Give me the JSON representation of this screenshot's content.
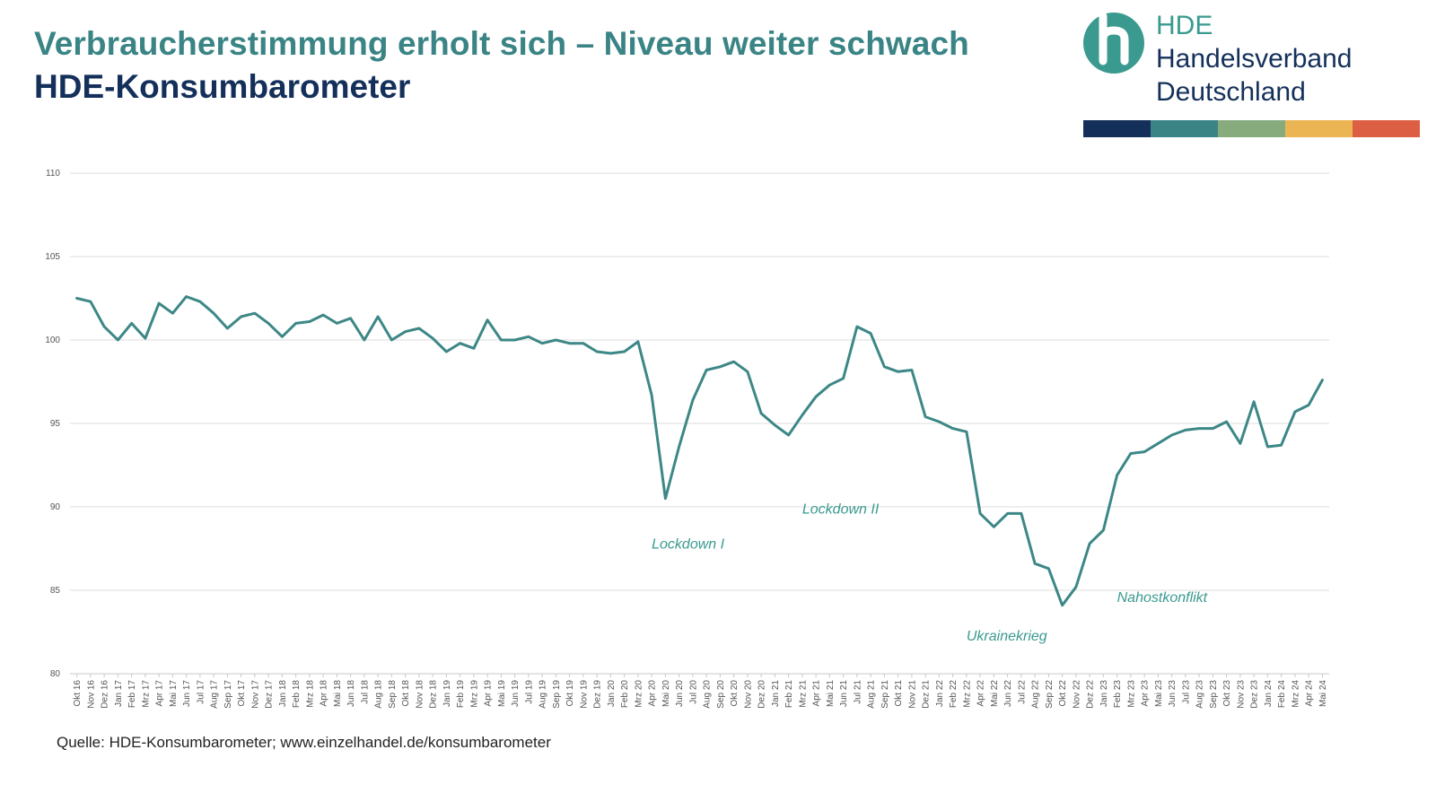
{
  "title": "Verbraucherstimmung erholt sich – Niveau weiter schwach",
  "subtitle": "HDE-Konsumbarometer",
  "logo": {
    "abbr": "HDE",
    "line1": "Handelsverband",
    "line2": "Deutschland",
    "letter": "h",
    "colors": [
      "#14305a",
      "#3a8485",
      "#88ab7e",
      "#ebb553",
      "#dc5f44"
    ]
  },
  "source": "Quelle: HDE-Konsumbarometer; www.einzelhandel.de/konsumbarometer",
  "chart_data": {
    "type": "line",
    "x": [
      "Okt 16",
      "Nov 16",
      "Dez 16",
      "Jan 17",
      "Feb 17",
      "Mrz 17",
      "Apr 17",
      "Mai 17",
      "Jun 17",
      "Jul 17",
      "Aug 17",
      "Sep 17",
      "Okt 17",
      "Nov 17",
      "Dez 17",
      "Jan 18",
      "Feb 18",
      "Mrz 18",
      "Apr 18",
      "Mai 18",
      "Jun 18",
      "Jul 18",
      "Aug 18",
      "Sep 18",
      "Okt 18",
      "Nov 18",
      "Dez 18",
      "Jan 19",
      "Feb 19",
      "Mrz 19",
      "Apr 19",
      "Mai 19",
      "Jun 19",
      "Jul 19",
      "Aug 19",
      "Sep 19",
      "Okt 19",
      "Nov 19",
      "Dez 19",
      "Jan 20",
      "Feb 20",
      "Mrz 20",
      "Apr 20",
      "Mai 20",
      "Jun 20",
      "Jul 20",
      "Aug 20",
      "Sep 20",
      "Okt 20",
      "Nov 20",
      "Dez 20",
      "Jan 21",
      "Feb 21",
      "Mrz 21",
      "Apr 21",
      "Mai 21",
      "Jun 21",
      "Jul 21",
      "Aug 21",
      "Sep 21",
      "Okt 21",
      "Nov 21",
      "Dez 21",
      "Jan 22",
      "Feb 22",
      "Mrz 22",
      "Apr 22",
      "Mai 22",
      "Jun 22",
      "Jul 22",
      "Aug 22",
      "Sep 22",
      "Okt 22",
      "Nov 22",
      "Dez 22",
      "Jan 23",
      "Feb 23",
      "Mrz 23",
      "Apr 23",
      "Mai 23",
      "Jun 23",
      "Jul 23",
      "Aug 23",
      "Sep 23",
      "Okt 23",
      "Nov 23",
      "Dez 23",
      "Jan 24",
      "Feb 24",
      "Mrz 24",
      "Apr 24",
      "Mai 24"
    ],
    "series": [
      {
        "values": [
          102.5,
          102.3,
          100.8,
          100.0,
          101.0,
          100.1,
          102.2,
          101.6,
          102.6,
          102.3,
          101.6,
          100.7,
          101.4,
          101.6,
          101.0,
          100.2,
          101.0,
          101.1,
          101.5,
          101.0,
          101.3,
          100.0,
          101.4,
          100.0,
          100.5,
          100.7,
          100.1,
          99.3,
          99.8,
          99.5,
          101.2,
          100.0,
          100.0,
          100.2,
          99.8,
          100.0,
          99.8,
          99.8,
          99.3,
          99.2,
          99.3,
          99.9,
          96.7,
          90.5,
          93.6,
          96.4,
          98.2,
          98.4,
          98.7,
          98.1,
          95.6,
          94.9,
          94.3,
          95.5,
          96.6,
          97.3,
          97.7,
          100.8,
          100.4,
          98.4,
          98.1,
          98.2,
          95.4,
          95.1,
          94.7,
          94.5,
          89.6,
          88.8,
          89.6,
          89.6,
          86.6,
          86.3,
          84.1,
          85.2,
          87.8,
          88.6,
          91.9,
          93.2,
          93.3,
          93.8,
          94.3,
          94.6,
          94.7,
          94.7,
          95.1,
          93.8,
          96.3,
          93.6,
          93.7,
          95.7,
          96.1,
          97.6
        ],
        "color": "#3d8787"
      }
    ],
    "ylim": [
      80,
      110
    ],
    "yticks": [
      80,
      85,
      90,
      95,
      100,
      105,
      110
    ],
    "grid": true,
    "annotations": [
      {
        "text": "Lockdown I",
        "x": "Apr 20",
        "y": 87.5
      },
      {
        "text": "Lockdown II",
        "x": "Mrz 21",
        "y": 89.6
      },
      {
        "text": "Ukrainekrieg",
        "x": "Mrz 22",
        "y": 82.0
      },
      {
        "text": "Nahostkonflikt",
        "x": "Feb 23",
        "y": 84.3
      }
    ],
    "annotation_color": "#3a9a8f"
  }
}
